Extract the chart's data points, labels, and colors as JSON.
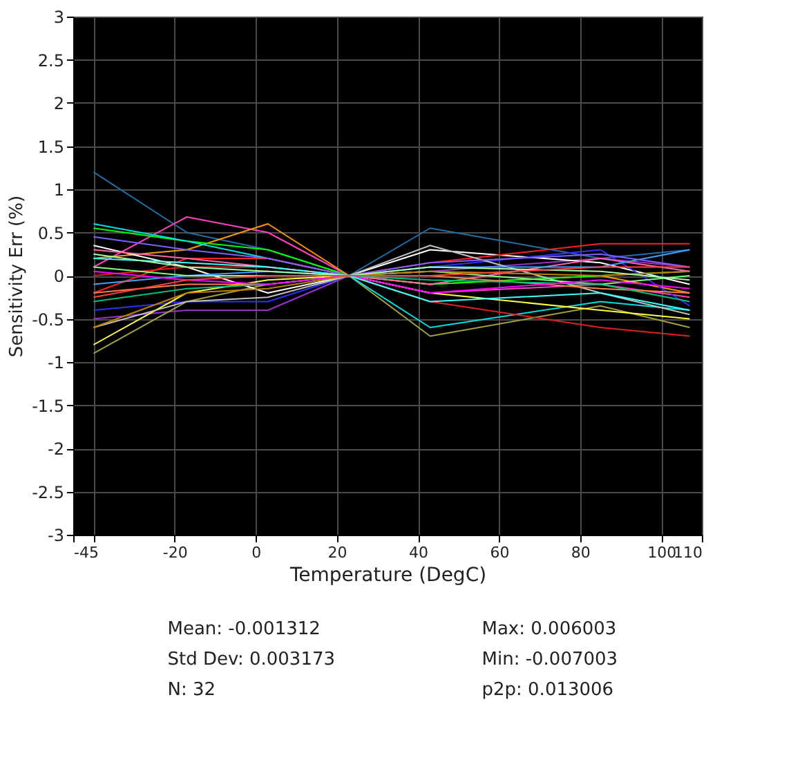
{
  "chart_data": {
    "type": "line",
    "xlabel": "Temperature (DegC)",
    "ylabel": "Sensitivity Err (%)",
    "x": [
      -40,
      -17,
      3,
      23,
      43,
      85,
      107
    ],
    "xlim": [
      -45,
      110
    ],
    "xticks": [
      -45,
      {
        "value": -40,
        "label": null
      },
      -20,
      0,
      20,
      40,
      60,
      80,
      100,
      110
    ],
    "ylim": [
      -3,
      3
    ],
    "yticks": [
      -3,
      -2.5,
      -2,
      -1.5,
      -1,
      -0.5,
      0,
      0.5,
      1,
      1.5,
      2,
      2.5,
      3
    ],
    "grid": true,
    "legend": false,
    "series": [
      {
        "color": "#1f6fa8",
        "values": [
          1.2,
          0.5,
          0.3,
          0,
          0.55,
          0.2,
          0.3
        ]
      },
      {
        "color": "#ff40c0",
        "values": [
          0.1,
          0.68,
          0.5,
          0,
          -0.2,
          -0.1,
          -0.25
        ]
      },
      {
        "color": "#ff9900",
        "values": [
          0.2,
          0.3,
          0.6,
          0,
          -0.1,
          0.0,
          -0.2
        ]
      },
      {
        "color": "#9933cc",
        "values": [
          -0.5,
          -0.4,
          -0.4,
          0,
          0.05,
          0.2,
          0.1
        ]
      },
      {
        "color": "#a0a040",
        "values": [
          -0.9,
          -0.3,
          -0.1,
          0,
          -0.7,
          -0.35,
          -0.6
        ]
      },
      {
        "color": "#00ff00",
        "values": [
          0.55,
          0.4,
          0.3,
          0,
          -0.1,
          0.0,
          0.05
        ]
      },
      {
        "color": "#ffffff",
        "values": [
          0.35,
          0.1,
          -0.2,
          0,
          0.3,
          0.15,
          -0.1
        ]
      },
      {
        "color": "#00e0e0",
        "values": [
          0.6,
          0.4,
          0.2,
          0,
          -0.6,
          -0.3,
          -0.4
        ]
      },
      {
        "color": "#e02020",
        "values": [
          0.0,
          0.1,
          0.1,
          0,
          -0.3,
          -0.6,
          -0.7
        ]
      },
      {
        "color": "#ff2020",
        "values": [
          -0.2,
          0.2,
          0.2,
          0,
          0.15,
          0.37,
          0.37
        ]
      },
      {
        "color": "#3030ff",
        "values": [
          -0.4,
          -0.3,
          -0.3,
          0,
          0.1,
          0.3,
          -0.35
        ]
      },
      {
        "color": "#ffff40",
        "values": [
          -0.8,
          -0.2,
          -0.05,
          0,
          -0.2,
          -0.4,
          -0.5
        ]
      },
      {
        "color": "#c0c0c0",
        "values": [
          -0.6,
          -0.3,
          -0.25,
          0,
          0.35,
          -0.2,
          -0.45
        ]
      },
      {
        "color": "#ff66aa",
        "values": [
          0.3,
          0.2,
          0.1,
          0,
          -0.1,
          0.2,
          0.05
        ]
      },
      {
        "color": "#40a0ff",
        "values": [
          -0.1,
          0.0,
          0.05,
          0,
          0.1,
          0.1,
          0.3
        ]
      },
      {
        "color": "#80ff80",
        "values": [
          0.1,
          0.0,
          0.0,
          0,
          0.05,
          -0.1,
          0.0
        ]
      },
      {
        "color": "#ff8040",
        "values": [
          -0.2,
          -0.1,
          -0.1,
          0,
          0.0,
          -0.15,
          -0.2
        ]
      },
      {
        "color": "#8060ff",
        "values": [
          0.45,
          0.3,
          0.2,
          0,
          0.15,
          0.25,
          0.1
        ]
      },
      {
        "color": "#00c080",
        "values": [
          -0.3,
          -0.15,
          -0.1,
          0,
          -0.05,
          -0.1,
          -0.3
        ]
      },
      {
        "color": "#ff00ff",
        "values": [
          0.05,
          -0.05,
          -0.1,
          0,
          -0.2,
          -0.05,
          -0.15
        ]
      },
      {
        "color": "#40ffff",
        "values": [
          0.2,
          0.15,
          0.1,
          0,
          -0.3,
          -0.2,
          -0.4
        ]
      },
      {
        "color": "#c08000",
        "values": [
          -0.6,
          -0.2,
          -0.15,
          0,
          0.05,
          0.0,
          0.05
        ]
      },
      {
        "color": "#a0ffa0",
        "values": [
          0.25,
          0.1,
          0.05,
          0,
          0.1,
          0.05,
          -0.05
        ]
      },
      {
        "color": "#ff4040",
        "values": [
          -0.25,
          -0.05,
          0.0,
          0,
          0.0,
          0.1,
          0.1
        ]
      }
    ],
    "annotations": [
      "Mean: -0.001312",
      "Std Dev: 0.003173",
      "N: 32",
      "Max: 0.006003",
      "Min: -0.007003",
      "p2p: 0.013006"
    ]
  }
}
